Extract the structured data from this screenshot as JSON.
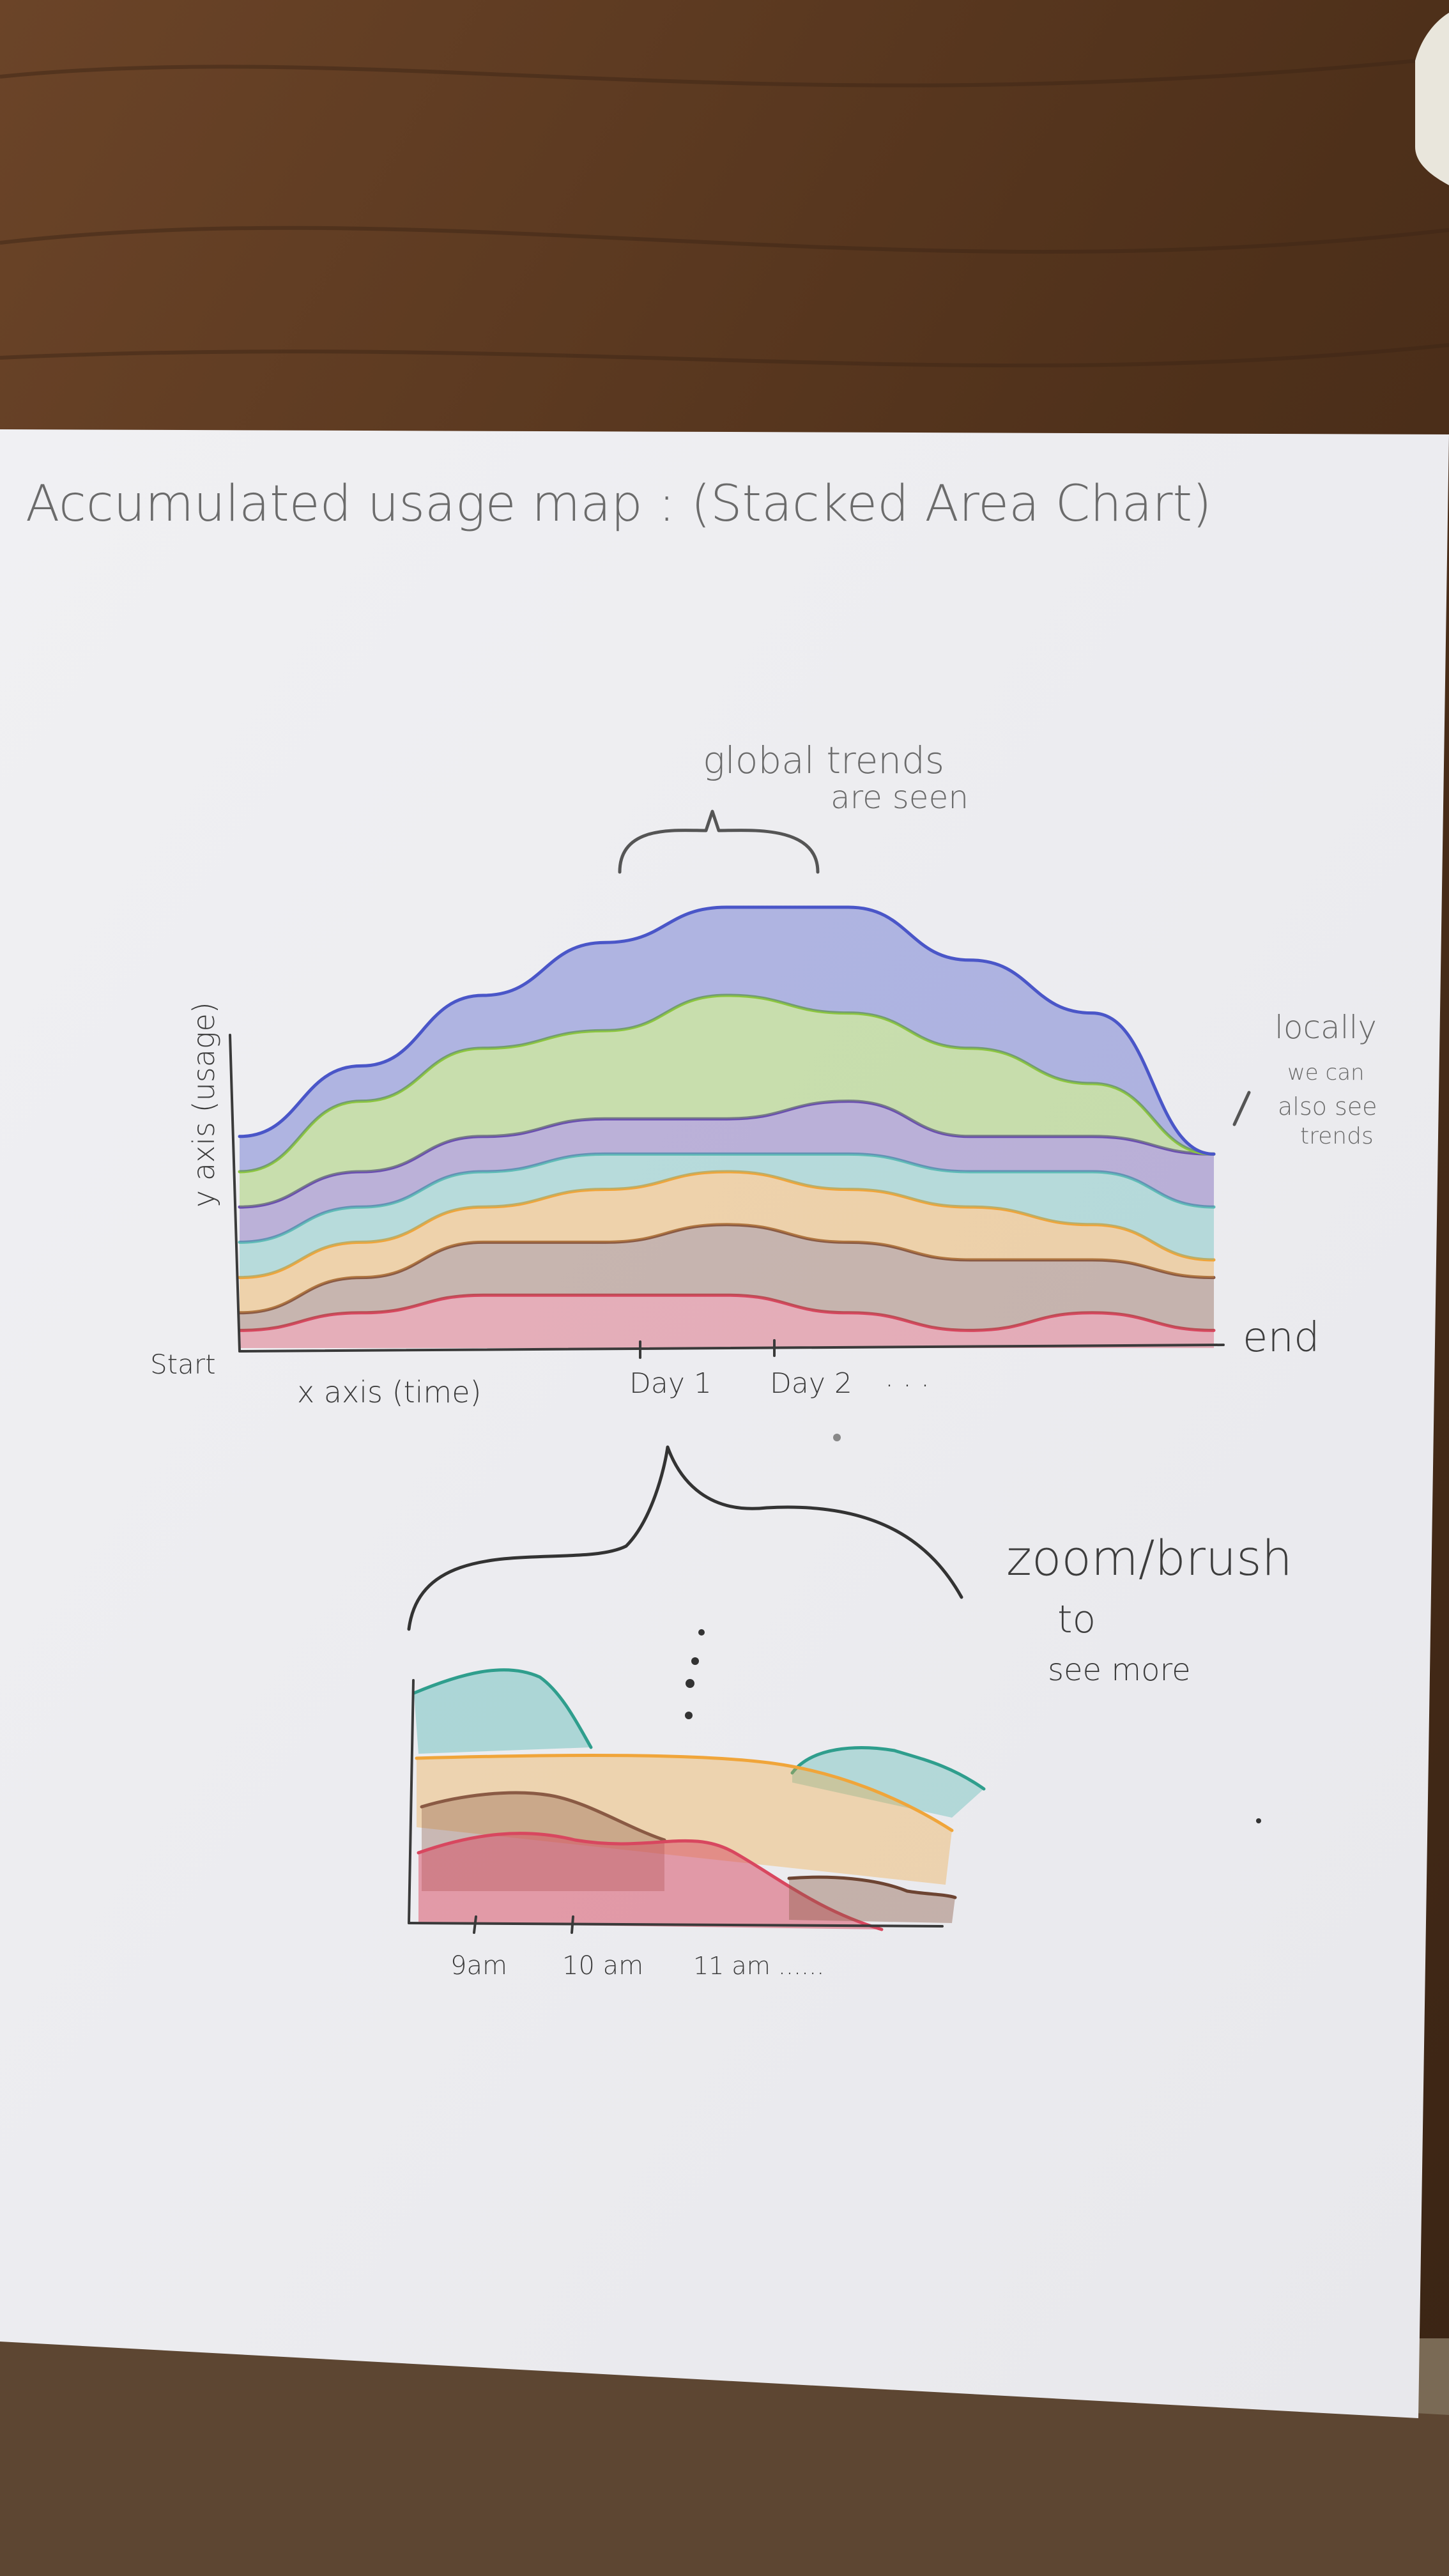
{
  "sketch": {
    "title": "Accumulated usage map : (Stacked Area Chart)",
    "annotations": {
      "global": [
        "global trends",
        "are seen"
      ],
      "local": [
        "locally",
        "we can",
        "also see",
        "trends"
      ],
      "zoom": [
        "zoom/brush",
        "to",
        "see more"
      ]
    },
    "main_chart": {
      "ylabel": "y axis (usage)",
      "xlabel": "x axis (time)",
      "start_label": "Start",
      "end_label": "end",
      "ticks": [
        "Day 1",
        "Day 2",
        ". . ."
      ]
    },
    "zoom_chart": {
      "ticks": [
        "9am",
        "10 am",
        "11 am ......"
      ]
    }
  },
  "colors": {
    "paper": "#f3f3f5",
    "table": "#5a3a22",
    "red": "#d8475f",
    "brown": "#8a5a44",
    "orange": "#f0a53a",
    "teal": "#5fbcb7",
    "purple": "#6a4fb0",
    "green": "#8cc63f",
    "blue": "#4a56c8",
    "pencil": "#3a3a3a"
  },
  "chart_data": {
    "type": "area",
    "stacked": true,
    "x": [
      "Start",
      "",
      "",
      "Day 1",
      "",
      "Day 2",
      "",
      "",
      "end"
    ],
    "series": [
      {
        "color": "red",
        "values": [
          1,
          2,
          3,
          3,
          3,
          2,
          1,
          2,
          1
        ]
      },
      {
        "color": "brown",
        "values": [
          1,
          2,
          3,
          3,
          4,
          4,
          4,
          3,
          3
        ]
      },
      {
        "color": "orange",
        "values": [
          2,
          2,
          2,
          3,
          3,
          3,
          3,
          2,
          1
        ]
      },
      {
        "color": "teal",
        "values": [
          2,
          2,
          2,
          2,
          1,
          2,
          2,
          3,
          3
        ]
      },
      {
        "color": "purple",
        "values": [
          2,
          2,
          2,
          2,
          2,
          3,
          2,
          2,
          3
        ]
      },
      {
        "color": "green",
        "values": [
          2,
          4,
          5,
          5,
          7,
          5,
          5,
          3,
          0
        ]
      },
      {
        "color": "blue",
        "values": [
          2,
          2,
          3,
          5,
          5,
          6,
          5,
          4,
          0
        ]
      }
    ],
    "grid": false,
    "legend": "none"
  }
}
